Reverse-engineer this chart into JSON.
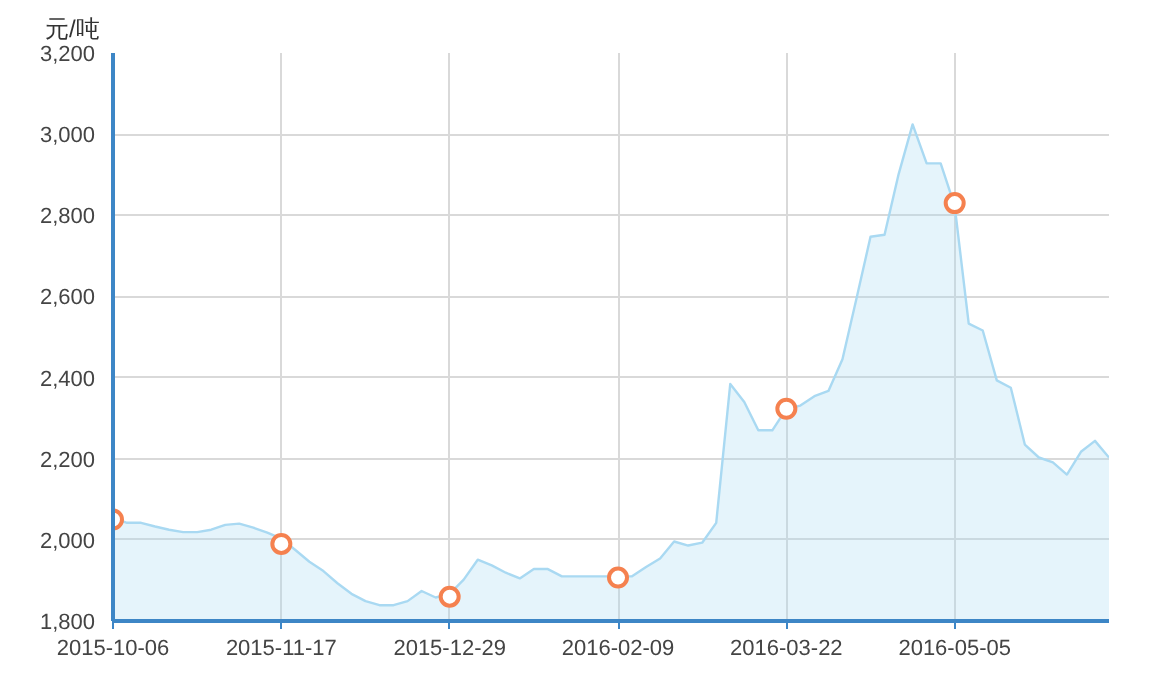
{
  "chart_data": {
    "type": "area",
    "ylabel": "元/吨",
    "categories": [
      "2015-10-06",
      null,
      null,
      null,
      null,
      null,
      null,
      null,
      null,
      null,
      null,
      null,
      "2015-11-17",
      null,
      null,
      null,
      null,
      null,
      null,
      null,
      null,
      null,
      null,
      null,
      "2015-12-29",
      null,
      null,
      null,
      null,
      null,
      null,
      null,
      null,
      null,
      null,
      null,
      "2016-02-09",
      null,
      null,
      null,
      null,
      null,
      null,
      null,
      null,
      null,
      null,
      null,
      "2016-03-22",
      null,
      null,
      null,
      null,
      null,
      null,
      null,
      null,
      null,
      null,
      null,
      "2016-05-05",
      null,
      null,
      null,
      null,
      null,
      null,
      null,
      null,
      null,
      null,
      null
    ],
    "series": [
      {
        "color": "#a9d9f2",
        "values": [
          2054,
          2042,
          2042,
          2033,
          2025,
          2019,
          2019,
          2025,
          2037,
          2040,
          2030,
          2018,
          2003,
          1975,
          1946,
          1923,
          1893,
          1867,
          1849,
          1839,
          1839,
          1849,
          1874,
          1858,
          1867,
          1902,
          1951,
          1937,
          1919,
          1905,
          1928,
          1928,
          1910,
          1910,
          1910,
          1910,
          1910,
          1910,
          1933,
          1954,
          1996,
          1986,
          1993,
          2042,
          2384,
          2340,
          2270,
          2270,
          2323,
          2331,
          2354,
          2367,
          2445,
          2595,
          2747,
          2752,
          2901,
          3024,
          2928,
          2928,
          2823,
          2533,
          2516,
          2393,
          2375,
          2235,
          2203,
          2191,
          2161,
          2217,
          2244,
          2203
        ]
      },
      {
        "type": "scatter",
        "color": "#f5814f",
        "marker": "circle",
        "values": [
          2050,
          null,
          null,
          null,
          null,
          null,
          null,
          null,
          null,
          null,
          null,
          null,
          1990,
          null,
          null,
          null,
          null,
          null,
          null,
          null,
          null,
          null,
          null,
          null,
          1860,
          null,
          null,
          null,
          null,
          null,
          null,
          null,
          null,
          null,
          null,
          null,
          1907,
          null,
          null,
          null,
          null,
          null,
          null,
          null,
          null,
          null,
          null,
          null,
          2323,
          null,
          null,
          null,
          null,
          null,
          null,
          null,
          null,
          null,
          null,
          null,
          2830,
          null,
          null,
          null,
          null,
          null,
          null,
          null,
          null,
          null,
          null,
          null
        ]
      }
    ],
    "ylim": [
      1800,
      3200
    ],
    "yticks": [
      {
        "value": 1800,
        "label": "1,800"
      },
      {
        "value": 2000,
        "label": "2,000"
      },
      {
        "value": 2200,
        "label": "2,200"
      },
      {
        "value": 2400,
        "label": "2,400"
      },
      {
        "value": 2600,
        "label": "2,600"
      },
      {
        "value": 2800,
        "label": "2,800"
      },
      {
        "value": 3000,
        "label": "3,000"
      },
      {
        "value": 3200,
        "label": "3,200"
      }
    ],
    "grid": true
  }
}
